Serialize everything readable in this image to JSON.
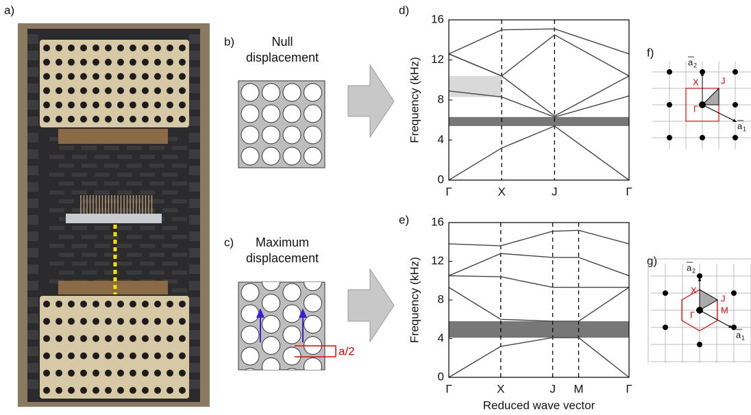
{
  "panels": {
    "a": "a)",
    "b": "b)",
    "c": "c)",
    "d": "d)",
    "e": "e)",
    "f": "f)",
    "g": "g)"
  },
  "null_caption": [
    "Null",
    "displacement"
  ],
  "max_caption": [
    "Maximum",
    "displacement"
  ],
  "shift_label": "a/2",
  "lattice_f": {
    "a1": "a",
    "a1_index": "1",
    "a2": "a",
    "a2_index": "2",
    "points": [
      "X",
      "J",
      "Γ"
    ]
  },
  "lattice_g": {
    "a1": "a",
    "a1_index": "1",
    "a2": "a",
    "a2_index": "2",
    "points": [
      "X",
      "J",
      "M",
      "Γ"
    ]
  },
  "chart_data": [
    {
      "type": "line",
      "ylabel": "Frequency (kHz)",
      "x": [
        0,
        1,
        2,
        3.41
      ],
      "xlim": [
        0,
        3.41
      ],
      "xticks": [
        {
          "value": 0,
          "label": "Γ"
        },
        {
          "value": 1,
          "label": "X"
        },
        {
          "value": 2,
          "label": "J"
        },
        {
          "value": 3.41,
          "label": "Γ"
        }
      ],
      "ylim": [
        0,
        16
      ],
      "yticks": [
        0,
        4,
        8,
        12,
        16
      ],
      "gaps": [
        {
          "from": 5.4,
          "to": 6.3,
          "color": "#777777"
        },
        {
          "from": 8.3,
          "to": 10.4,
          "x": [
            0,
            1
          ],
          "color": "#d9d9d9"
        }
      ],
      "series": [
        {
          "color": "#444444",
          "values": [
            0,
            3.2,
            5.4,
            0
          ]
        },
        {
          "color": "#444444",
          "values": [
            8.9,
            8.3,
            6.3,
            8.4
          ]
        },
        {
          "color": "#444444",
          "values": [
            12.6,
            10.4,
            6.4,
            10.4
          ]
        },
        {
          "color": "#444444",
          "values": [
            12.6,
            15.0,
            15.1,
            12.6
          ]
        },
        {
          "color": "#444444",
          "values": [
            12.6,
            10.4,
            14.5,
            10.4
          ]
        }
      ]
    },
    {
      "type": "line",
      "ylabel": "Frequency (kHz)",
      "xlabel": "Reduced wave vector",
      "x": [
        0,
        1,
        2,
        2.5,
        3.47
      ],
      "xlim": [
        0,
        3.47
      ],
      "xticks": [
        {
          "value": 0,
          "label": "Γ"
        },
        {
          "value": 1,
          "label": "X"
        },
        {
          "value": 2,
          "label": "J"
        },
        {
          "value": 2.5,
          "label": "M"
        },
        {
          "value": 3.47,
          "label": "Γ"
        }
      ],
      "ylim": [
        0,
        16
      ],
      "yticks": [
        0,
        4,
        8,
        12,
        16
      ],
      "gaps": [
        {
          "from": 4.1,
          "to": 5.8,
          "color": "#777777"
        }
      ],
      "series": [
        {
          "color": "#444444",
          "values": [
            0,
            3.2,
            4.1,
            4.1,
            0
          ]
        },
        {
          "color": "#444444",
          "values": [
            9.3,
            6.0,
            5.8,
            5.8,
            9.3
          ]
        },
        {
          "color": "#444444",
          "values": [
            10.5,
            10.4,
            9.3,
            9.3,
            9.3
          ]
        },
        {
          "color": "#444444",
          "values": [
            10.5,
            12.8,
            12.4,
            12.4,
            10.5
          ]
        },
        {
          "color": "#444444",
          "values": [
            13.8,
            13.6,
            15.1,
            15.2,
            13.8
          ]
        }
      ]
    }
  ]
}
